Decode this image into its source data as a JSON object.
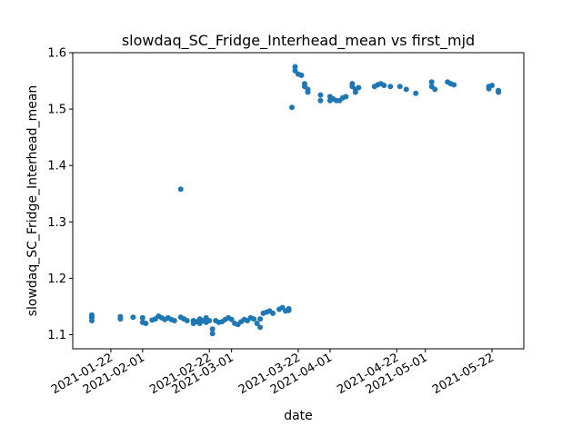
{
  "chart_data": {
    "type": "scatter",
    "title": "slowdaq_SC_Fridge_Interhead_mean vs first_mjd",
    "xlabel": "date",
    "ylabel": "slowdaq_SC_Fridge_Interhead_mean",
    "xlim": [
      "2021-01-10",
      "2021-06-01"
    ],
    "ylim": [
      1.075,
      1.6
    ],
    "x_ticks": [
      "2021-01-22",
      "2021-02-01",
      "2021-02-22",
      "2021-03-01",
      "2021-03-22",
      "2021-04-01",
      "2021-04-22",
      "2021-05-01",
      "2021-05-22"
    ],
    "y_ticks": [
      "1.1",
      "1.2",
      "1.3",
      "1.4",
      "1.5",
      "1.6"
    ],
    "grid": false,
    "marker_color": "#1f77b4",
    "series": [
      {
        "points": [
          [
            "2021-01-16",
            1.135
          ],
          [
            "2021-01-16",
            1.13
          ],
          [
            "2021-01-16",
            1.125
          ],
          [
            "2021-01-16",
            1.133
          ],
          [
            "2021-01-25",
            1.132
          ],
          [
            "2021-01-25",
            1.128
          ],
          [
            "2021-01-29",
            1.131
          ],
          [
            "2021-02-01",
            1.13
          ],
          [
            "2021-02-01",
            1.122
          ],
          [
            "2021-02-02",
            1.12
          ],
          [
            "2021-02-04",
            1.126
          ],
          [
            "2021-02-05",
            1.128
          ],
          [
            "2021-02-06",
            1.133
          ],
          [
            "2021-02-07",
            1.13
          ],
          [
            "2021-02-08",
            1.127
          ],
          [
            "2021-02-09",
            1.13
          ],
          [
            "2021-02-10",
            1.127
          ],
          [
            "2021-02-11",
            1.125
          ],
          [
            "2021-02-13",
            1.358
          ],
          [
            "2021-02-13",
            1.131
          ],
          [
            "2021-02-14",
            1.128
          ],
          [
            "2021-02-15",
            1.125
          ],
          [
            "2021-02-17",
            1.12
          ],
          [
            "2021-02-17",
            1.125
          ],
          [
            "2021-02-18",
            1.123
          ],
          [
            "2021-02-19",
            1.12
          ],
          [
            "2021-02-19",
            1.128
          ],
          [
            "2021-02-20",
            1.125
          ],
          [
            "2021-02-21",
            1.13
          ],
          [
            "2021-02-21",
            1.122
          ],
          [
            "2021-02-22",
            1.125
          ],
          [
            "2021-02-23",
            1.11
          ],
          [
            "2021-02-23",
            1.102
          ],
          [
            "2021-02-24",
            1.125
          ],
          [
            "2021-02-25",
            1.122
          ],
          [
            "2021-02-26",
            1.123
          ],
          [
            "2021-02-27",
            1.127
          ],
          [
            "2021-02-28",
            1.13
          ],
          [
            "2021-03-01",
            1.127
          ],
          [
            "2021-03-02",
            1.12
          ],
          [
            "2021-03-03",
            1.118
          ],
          [
            "2021-03-04",
            1.123
          ],
          [
            "2021-03-05",
            1.127
          ],
          [
            "2021-03-06",
            1.125
          ],
          [
            "2021-03-07",
            1.13
          ],
          [
            "2021-03-08",
            1.128
          ],
          [
            "2021-03-09",
            1.12
          ],
          [
            "2021-03-10",
            1.113
          ],
          [
            "2021-03-10",
            1.128
          ],
          [
            "2021-03-11",
            1.138
          ],
          [
            "2021-03-12",
            1.14
          ],
          [
            "2021-03-13",
            1.142
          ],
          [
            "2021-03-14",
            1.138
          ],
          [
            "2021-03-16",
            1.145
          ],
          [
            "2021-03-17",
            1.148
          ],
          [
            "2021-03-18",
            1.142
          ],
          [
            "2021-03-19",
            1.146
          ],
          [
            "2021-03-19",
            1.143
          ],
          [
            "2021-03-20",
            1.503
          ],
          [
            "2021-03-21",
            1.575
          ],
          [
            "2021-03-21",
            1.568
          ],
          [
            "2021-03-22",
            1.562
          ],
          [
            "2021-03-23",
            1.56
          ],
          [
            "2021-03-24",
            1.545
          ],
          [
            "2021-03-24",
            1.54
          ],
          [
            "2021-03-25",
            1.535
          ],
          [
            "2021-03-25",
            1.53
          ],
          [
            "2021-03-29",
            1.525
          ],
          [
            "2021-03-29",
            1.515
          ],
          [
            "2021-04-01",
            1.522
          ],
          [
            "2021-04-01",
            1.515
          ],
          [
            "2021-04-02",
            1.518
          ],
          [
            "2021-04-03",
            1.515
          ],
          [
            "2021-04-04",
            1.515
          ],
          [
            "2021-04-05",
            1.52
          ],
          [
            "2021-04-06",
            1.522
          ],
          [
            "2021-04-08",
            1.545
          ],
          [
            "2021-04-08",
            1.54
          ],
          [
            "2021-04-09",
            1.535
          ],
          [
            "2021-04-09",
            1.53
          ],
          [
            "2021-04-10",
            1.538
          ],
          [
            "2021-04-15",
            1.54
          ],
          [
            "2021-04-16",
            1.543
          ],
          [
            "2021-04-17",
            1.545
          ],
          [
            "2021-04-18",
            1.542
          ],
          [
            "2021-04-20",
            1.54
          ],
          [
            "2021-04-23",
            1.54
          ],
          [
            "2021-04-25",
            1.535
          ],
          [
            "2021-04-28",
            1.528
          ],
          [
            "2021-05-03",
            1.548
          ],
          [
            "2021-05-03",
            1.54
          ],
          [
            "2021-05-04",
            1.535
          ],
          [
            "2021-05-08",
            1.548
          ],
          [
            "2021-05-09",
            1.545
          ],
          [
            "2021-05-10",
            1.543
          ],
          [
            "2021-05-21",
            1.54
          ],
          [
            "2021-05-21",
            1.536
          ],
          [
            "2021-05-22",
            1.542
          ],
          [
            "2021-05-24",
            1.533
          ],
          [
            "2021-05-24",
            1.53
          ]
        ]
      }
    ]
  }
}
